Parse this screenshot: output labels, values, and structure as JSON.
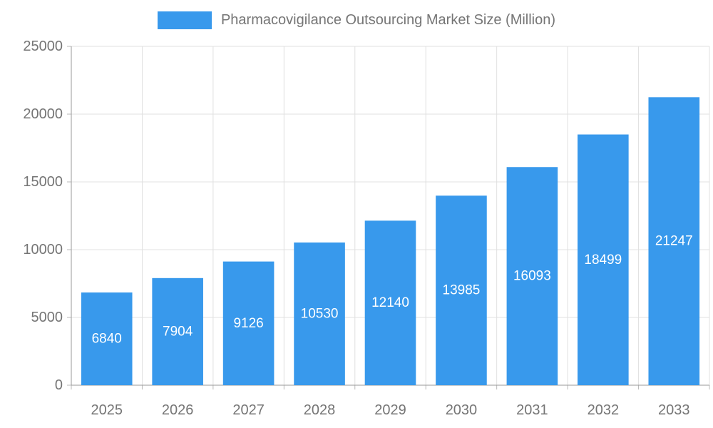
{
  "chart_data": {
    "type": "bar",
    "title": "Pharmacovigilance Outsourcing Market Size (Million)",
    "categories": [
      "2025",
      "2026",
      "2027",
      "2028",
      "2029",
      "2030",
      "2031",
      "2032",
      "2033"
    ],
    "values": [
      6840,
      7904,
      9126,
      10530,
      12140,
      13985,
      16093,
      18499,
      21247
    ],
    "xlabel": "",
    "ylabel": "",
    "ylim": [
      0,
      25000
    ],
    "yticks": [
      0,
      5000,
      10000,
      15000,
      20000,
      25000
    ],
    "grid": true,
    "legend_position": "top",
    "bar_labels_inside": true,
    "colors": {
      "bar": "#3899ec",
      "bar_label": "#ffffff",
      "axis_text": "#757575",
      "grid_line": "#e0e0e0",
      "axis_line": "#9a9a9a",
      "tick_line": "#b8b8b8"
    }
  }
}
